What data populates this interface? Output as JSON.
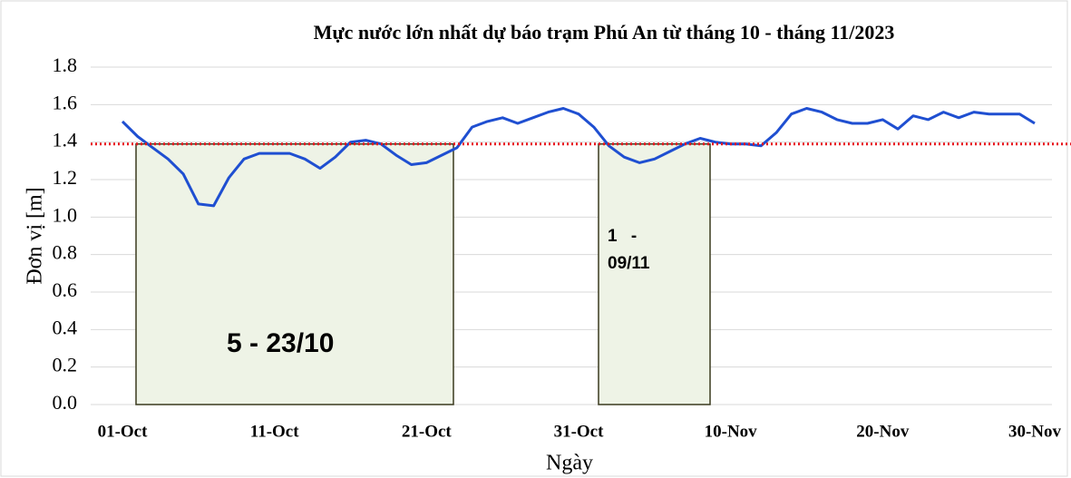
{
  "chart_data": {
    "type": "line",
    "title": "Mực nước lớn nhất dự báo trạm Phú An từ tháng 10 - tháng 11/2023",
    "y_label": "Đơn vị [m]",
    "x_label": "Ngày",
    "categories": [
      "01-Oct",
      null,
      null,
      null,
      null,
      null,
      null,
      null,
      null,
      null,
      "11-Oct",
      null,
      null,
      null,
      null,
      null,
      null,
      null,
      null,
      null,
      "21-Oct",
      null,
      null,
      null,
      null,
      null,
      null,
      null,
      null,
      null,
      "31-Oct",
      null,
      null,
      null,
      null,
      null,
      null,
      null,
      null,
      null,
      "10-Nov",
      null,
      null,
      null,
      null,
      null,
      null,
      null,
      null,
      null,
      "20-Nov",
      null,
      null,
      null,
      null,
      null,
      null,
      null,
      null,
      null,
      "30-Nov"
    ],
    "values": [
      1.51,
      1.43,
      1.37,
      1.31,
      1.23,
      1.07,
      1.06,
      1.21,
      1.31,
      1.34,
      1.34,
      1.34,
      1.31,
      1.26,
      1.32,
      1.4,
      1.41,
      1.39,
      1.33,
      1.28,
      1.29,
      1.33,
      1.37,
      1.48,
      1.51,
      1.53,
      1.5,
      1.53,
      1.56,
      1.58,
      1.55,
      1.48,
      1.38,
      1.32,
      1.29,
      1.31,
      1.35,
      1.39,
      1.42,
      1.4,
      1.39,
      1.39,
      1.38,
      1.45,
      1.55,
      1.58,
      1.56,
      1.52,
      1.5,
      1.5,
      1.52,
      1.47,
      1.54,
      1.52,
      1.56,
      1.53,
      1.56,
      1.55,
      1.55,
      1.55,
      1.5
    ],
    "color": "#1f4fd1",
    "threshold": 1.39,
    "threshold_color": "#e8141c",
    "annotations": [
      "5 - 23/10",
      "1 - 09/11"
    ],
    "ylim": [
      0,
      1.8
    ],
    "yticks": [
      {
        "value": 0,
        "label": "0.0"
      },
      0.2,
      0.4,
      0.6,
      0.8,
      {
        "value": 1,
        "label": "1.0"
      },
      1.2,
      1.4,
      1.6,
      1.8
    ],
    "grid": true
  }
}
